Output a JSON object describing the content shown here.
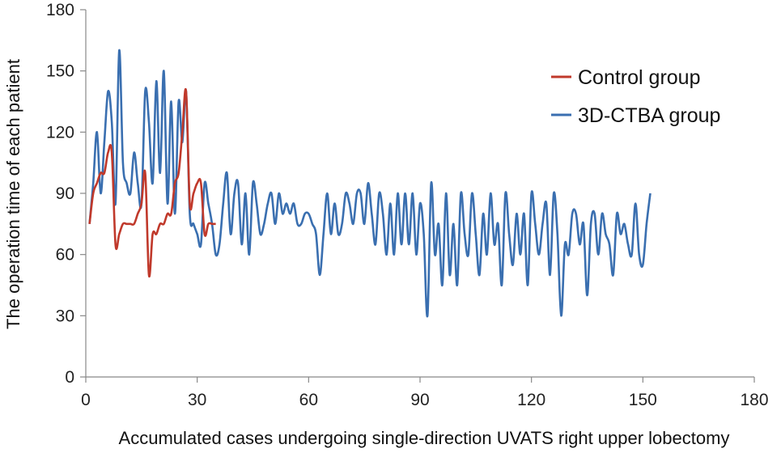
{
  "chart_data": {
    "type": "line",
    "xlabel": "Accumulated cases undergoing single-direction UVATS right upper lobectomy",
    "ylabel": "The operation time of each patient",
    "xlim": [
      0,
      180
    ],
    "ylim": [
      0,
      180
    ],
    "x_ticks": [
      0,
      30,
      60,
      90,
      120,
      150,
      180
    ],
    "y_ticks": [
      0,
      30,
      60,
      90,
      120,
      150,
      180
    ],
    "grid": false,
    "legend_position": "top-right",
    "series": [
      {
        "name": "Control group",
        "color": "#c0392b",
        "values": [
          75,
          90,
          95,
          100,
          100,
          110,
          110,
          65,
          70,
          75,
          75,
          75,
          75,
          80,
          85,
          100,
          50,
          70,
          70,
          75,
          75,
          80,
          80,
          95,
          100,
          120,
          140,
          85,
          90,
          95,
          95,
          70,
          75,
          75,
          75
        ]
      },
      {
        "name": "3D-CTBA group",
        "color": "#3a6fb0",
        "values": [
          75,
          95,
          120,
          90,
          115,
          140,
          125,
          85,
          160,
          105,
          95,
          90,
          110,
          95,
          85,
          140,
          125,
          95,
          145,
          100,
          150,
          85,
          135,
          80,
          135,
          115,
          140,
          80,
          75,
          70,
          65,
          95,
          85,
          75,
          60,
          65,
          85,
          100,
          70,
          90,
          95,
          65,
          90,
          60,
          95,
          85,
          70,
          75,
          85,
          90,
          75,
          90,
          80,
          85,
          80,
          85,
          75,
          75,
          80,
          80,
          75,
          70,
          50,
          70,
          90,
          70,
          85,
          70,
          75,
          90,
          85,
          75,
          90,
          90,
          75,
          95,
          80,
          65,
          90,
          80,
          60,
          85,
          60,
          90,
          65,
          90,
          65,
          90,
          60,
          85,
          70,
          30,
          95,
          60,
          75,
          45,
          90,
          50,
          75,
          45,
          90,
          70,
          60,
          90,
          70,
          50,
          80,
          60,
          90,
          65,
          75,
          45,
          90,
          70,
          55,
          80,
          60,
          80,
          45,
          90,
          75,
          60,
          75,
          85,
          50,
          90,
          70,
          30,
          65,
          60,
          80,
          80,
          65,
          75,
          40,
          75,
          80,
          60,
          80,
          70,
          65,
          50,
          80,
          70,
          75,
          65,
          60,
          85,
          60,
          55,
          75,
          90
        ]
      }
    ]
  }
}
